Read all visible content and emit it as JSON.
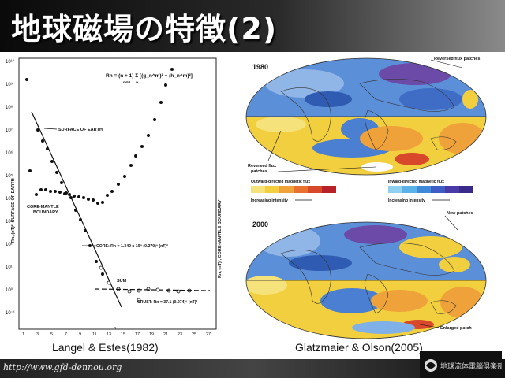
{
  "slide": {
    "title": "地球磁場の特徴(2)",
    "footer_url": "http://www.gfd-dennou.org",
    "logo_text": "地球流体電脳倶楽部"
  },
  "left_figure": {
    "caption": "Langel & Estes(1982)",
    "formula": "Rn = (n + 1) Σ [(g_n^m)² + (h_n^m)²]",
    "formula_sum_limits": "m=0 … n",
    "y_label_left": "Rn, (nT)², SURFACE OF EARTH",
    "y_label_right": "Rn, (nT)², CORE-MANTLE BOUNDARY",
    "x_label": "n",
    "labels": {
      "surface": "SURFACE OF EARTH",
      "cmb_line1": "CORE-MANTLE",
      "cmb_line2": "BOUNDARY",
      "core": "CORE: Rn = 1.349 x 10⁹ (0.270)ⁿ (nT)²",
      "sum": "SUM",
      "crust": "CRUST: Rn = 37.1 (0.974)ⁿ (nT)²"
    },
    "y_ticks": [
      "10¹⁰",
      "10⁹",
      "10⁸",
      "10⁷",
      "10⁶",
      "10⁵",
      "10⁴",
      "10³",
      "10²",
      "10¹",
      "10⁰",
      "10⁻¹"
    ],
    "x_ticks": [
      "1",
      "3",
      "5",
      "7",
      "9",
      "11",
      "13",
      "15",
      "17",
      "19",
      "21",
      "23",
      "25",
      "27"
    ]
  },
  "right_figure": {
    "caption": "Glatzmaier & Olson(2005)",
    "year_top": "1980",
    "year_bottom": "2000",
    "ann_reversed_top": "Reversed flux patches",
    "ann_reversed_left_1": "Reversed flux",
    "ann_reversed_left_2": "patches",
    "ann_new": "New patches",
    "ann_enlarged": "Enlarged patch",
    "legend_out": "Outward-directed magnetic flux",
    "legend_in": "Inward-directed magnetic flux",
    "legend_intensity_a": "Increasing intensity",
    "legend_intensity_b": "Increasing intensity"
  }
}
